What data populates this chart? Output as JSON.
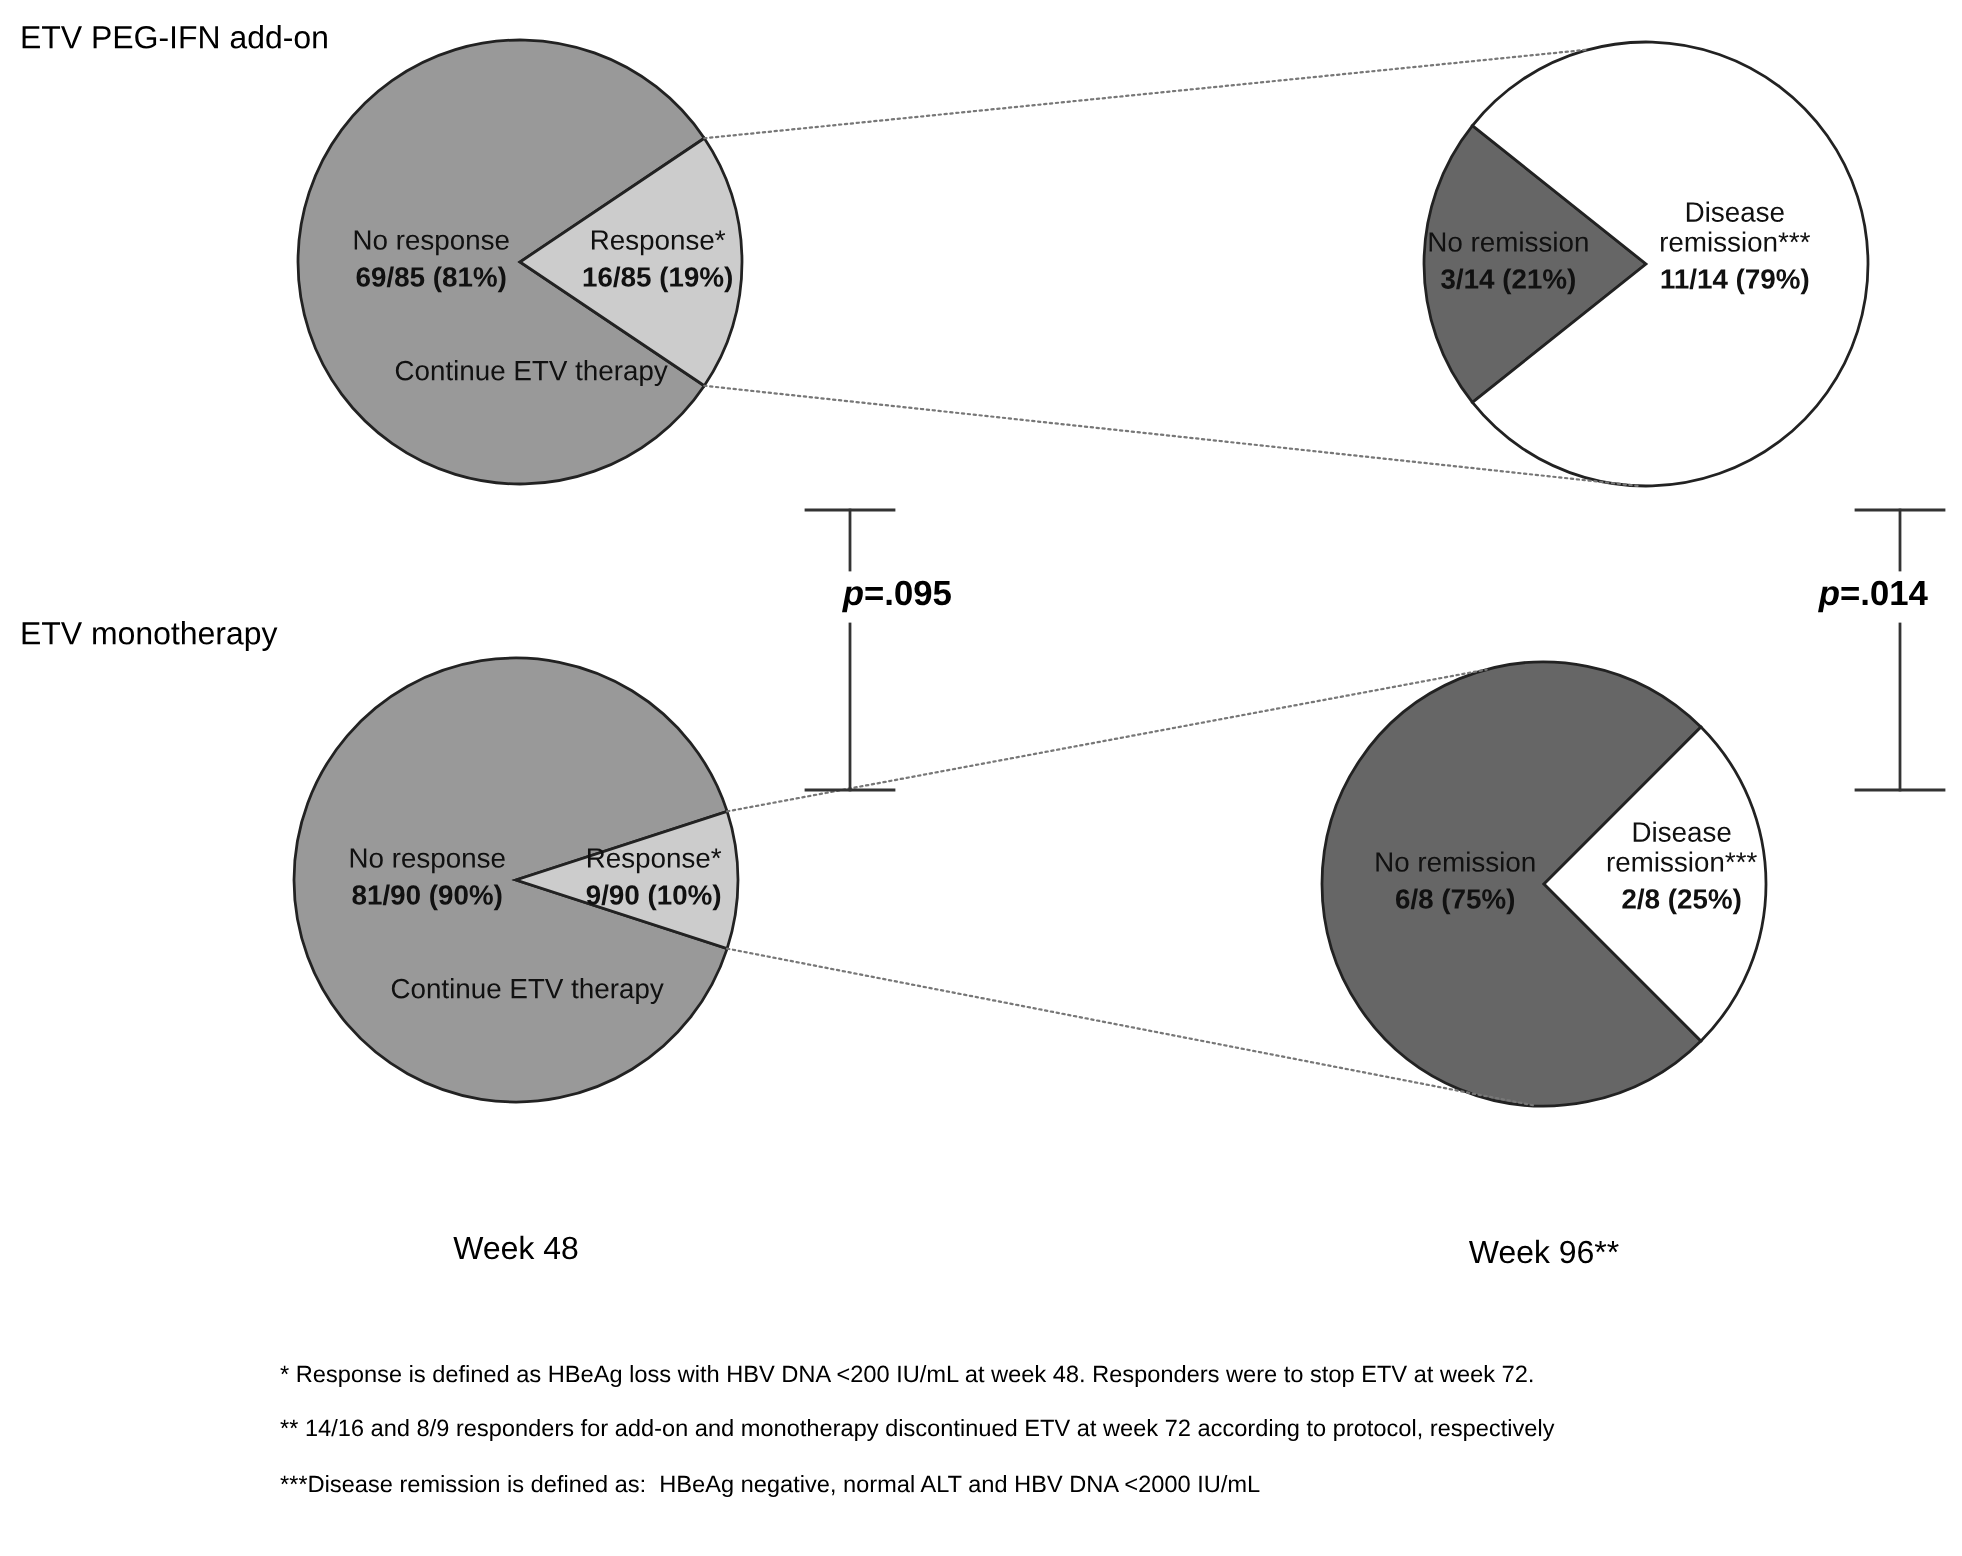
{
  "chart_data": [
    {
      "type": "pie",
      "title": "ETV PEG-IFN add-on",
      "categories": [
        "No response",
        "Response*"
      ],
      "values": [
        69,
        16
      ],
      "colors": [
        "#999999",
        "#cccccc"
      ],
      "value_labels": [
        "69/85 (81%)",
        "16/85 (19%)"
      ],
      "annotations": [
        "Continue ETV therapy"
      ]
    },
    {
      "type": "pie",
      "categories": [
        "No remission",
        "Disease\nremission***"
      ],
      "values": [
        3,
        11
      ],
      "colors": [
        "#666666",
        "#ffffff"
      ],
      "value_labels": [
        "3/14 (21%)",
        "11/14 (79%)"
      ]
    },
    {
      "type": "pie",
      "title": "ETV monotherapy",
      "xlabel": "Week 48",
      "categories": [
        "No response",
        "Response*"
      ],
      "values": [
        81,
        9
      ],
      "colors": [
        "#999999",
        "#cccccc"
      ],
      "value_labels": [
        "81/90 (90%)",
        "9/90 (10%)"
      ],
      "annotations": [
        "Continue ETV therapy",
        "p=.095"
      ]
    },
    {
      "type": "pie",
      "xlabel": "Week 96**",
      "categories": [
        "No remission",
        "Disease\nremission***"
      ],
      "values": [
        6,
        2
      ],
      "colors": [
        "#666666",
        "#ffffff"
      ],
      "value_labels": [
        "6/8 (75%)",
        "2/8 (25%)"
      ],
      "annotations": [
        "p=.014"
      ]
    },
    {
      "type": "other",
      "annotations": [
        "* Response is defined as HBeAg loss with HBV DNA <200 IU/mL at week 48. Responders were to stop ETV at week 72.",
        "** 14/16 and 8/9 responders for add-on and monotherapy discontinued ETV at week 72 according to protocol, respectively",
        "***Disease remission is defined as:  HBeAg negative, normal ALT and HBV DNA <2000 IU/mL"
      ]
    }
  ]
}
